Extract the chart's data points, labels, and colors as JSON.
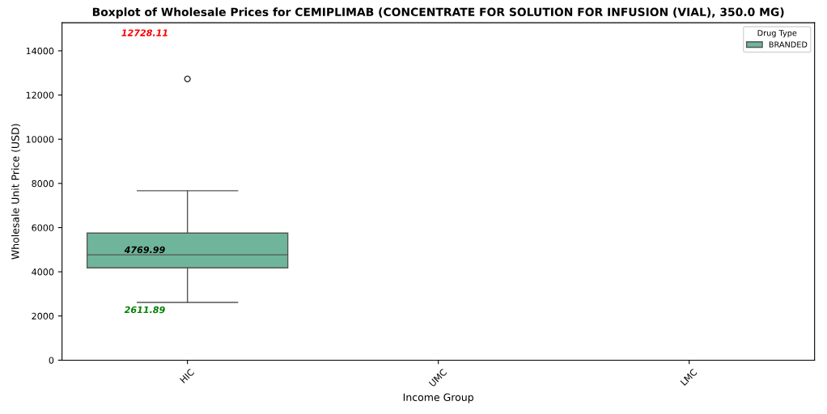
{
  "chart_data": {
    "type": "box",
    "title": "Boxplot of Wholesale Prices for CEMIPLIMAB (CONCENTRATE FOR SOLUTION FOR INFUSION (VIAL), 350.0 MG)",
    "xlabel": "Income Group",
    "ylabel": "Wholesale Unit Price (USD)",
    "legend_title": "Drug Type",
    "legend": "top right",
    "grid": false,
    "categories": [
      "HIC",
      "UMC",
      "LMC"
    ],
    "series": [
      {
        "name": "BRANDED",
        "color": "#6fb59b",
        "boxes": [
          {
            "low": 2611.89,
            "q1": 4180,
            "median": 4769.99,
            "q3": 5750,
            "high": 7670,
            "outliers": [
              12728.11
            ]
          },
          null,
          null
        ]
      }
    ],
    "annotations": [
      "12728.11",
      "4769.99",
      "2611.89"
    ],
    "ylim": [
      0,
      15270
    ],
    "yticks": [
      0,
      2000,
      4000,
      6000,
      8000,
      10000,
      12000,
      14000
    ]
  }
}
